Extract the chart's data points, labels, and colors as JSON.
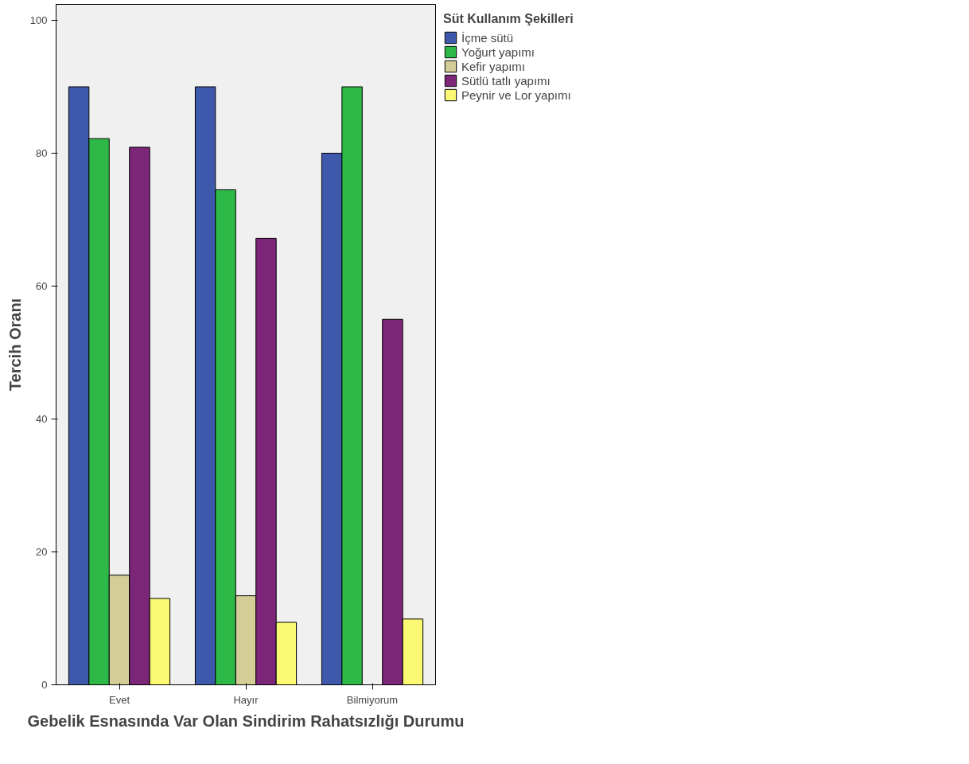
{
  "chart_data": {
    "type": "bar",
    "xlabel": "Gebelik Esnasında Var Olan Sindirim Rahatsızlığı Durumu",
    "ylabel": "Tercih Oranı",
    "legend_title": "Süt Kullanım Şekilleri",
    "categories": [
      "Evet",
      "Hayır",
      "Bilmiyorum"
    ],
    "series": [
      {
        "name": "İçme sütü",
        "color": "#3e58ac",
        "values": [
          90,
          90,
          80
        ]
      },
      {
        "name": "Yoğurt yapımı",
        "color": "#2eb848",
        "values": [
          82.2,
          74.5,
          90
        ]
      },
      {
        "name": "Kefir yapımı",
        "color": "#d3ce97",
        "values": [
          16.5,
          13.4,
          null
        ]
      },
      {
        "name": "Sütlü tatlı yapımı",
        "color": "#7b2678",
        "values": [
          80.9,
          67.2,
          55
        ]
      },
      {
        "name": "Peynir ve Lor yapımı",
        "color": "#fbf873",
        "values": [
          13,
          9.4,
          9.9
        ]
      }
    ],
    "ylim": [
      0,
      102.4
    ],
    "yticks": [
      0,
      20,
      40,
      60,
      80,
      100
    ],
    "grid": false,
    "legend": "right"
  }
}
